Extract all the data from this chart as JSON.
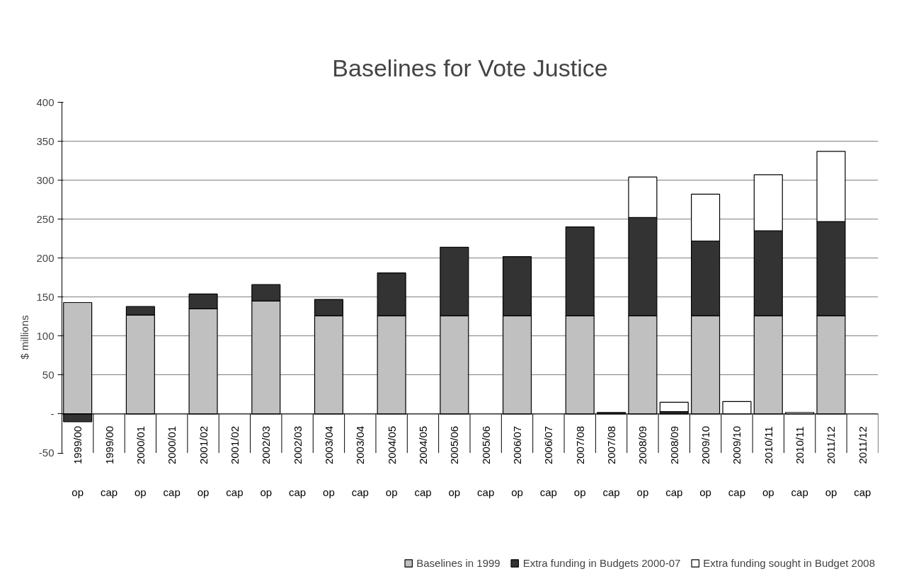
{
  "chart_data": {
    "type": "bar",
    "title": "Baselines for Vote Justice",
    "ylabel": "$ millions",
    "categories": [
      "1999/00\nop",
      "1999/00\ncap",
      "2000/01\nop",
      "2000/01\ncap",
      "2001/02\nop",
      "2001/02\ncap",
      "2002/03\nop",
      "2002/03\ncap",
      "2003/04\nop",
      "2003/04\ncap",
      "2004/05\nop",
      "2004/05\ncap",
      "2005/06\nop",
      "2005/06\ncap",
      "2006/07\nop",
      "2006/07\ncap",
      "2007/08\nop",
      "2007/08\ncap",
      "2008/09\nop",
      "2008/09\ncap",
      "2009/10\nop",
      "2009/10\ncap",
      "2010/11\nop",
      "2010/11\ncap",
      "2011/12\nop",
      "2011/12\ncap"
    ],
    "stacked": true,
    "series": [
      {
        "name": "Baselines in 1999",
        "color": "#c0c0c0",
        "values": [
          143,
          null,
          127,
          null,
          135,
          null,
          145,
          null,
          126,
          null,
          126,
          null,
          126,
          null,
          126,
          null,
          126,
          null,
          126,
          null,
          126,
          null,
          126,
          null,
          126,
          null
        ]
      },
      {
        "name": "Extra funding in Budgets 2000-07",
        "color": "#333333",
        "values": [
          -10,
          null,
          11,
          null,
          19,
          null,
          21,
          null,
          21,
          null,
          55,
          null,
          88,
          null,
          76,
          null,
          114,
          2,
          126,
          3,
          96,
          null,
          109,
          null,
          121,
          null
        ]
      },
      {
        "name": "Extra funding sought in Budget 2008",
        "color": "#ffffff",
        "values": [
          null,
          null,
          null,
          null,
          null,
          null,
          null,
          null,
          null,
          null,
          null,
          null,
          null,
          null,
          null,
          null,
          null,
          null,
          52,
          12,
          60,
          16,
          72,
          2,
          90,
          null
        ]
      }
    ],
    "ylim": [
      -50,
      400
    ],
    "yticks": [
      {
        "value": -50,
        "label": "-50"
      },
      {
        "value": 0,
        "label": "-"
      },
      50,
      100,
      150,
      200,
      250,
      300,
      350,
      400
    ],
    "grid": "y",
    "legend": "bottom"
  }
}
